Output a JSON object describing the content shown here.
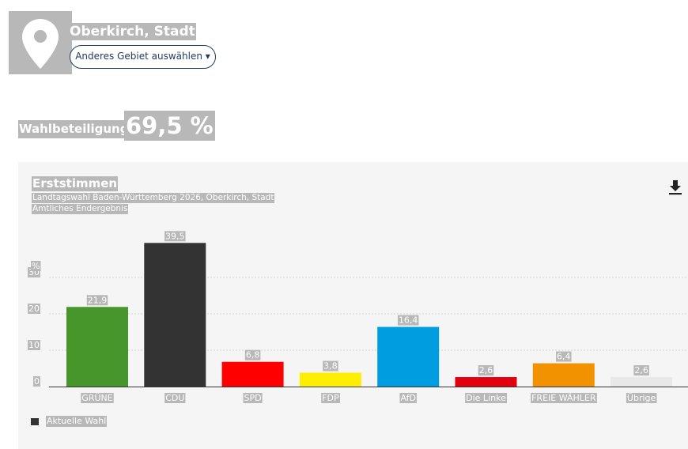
{
  "header": {
    "place_name": "Oberkirch, Stadt",
    "region_button_label": "Anderes Gebiet auswählen ▾",
    "pin_icon": "map-pin-icon"
  },
  "turnout": {
    "label": "Wahlbeteiligung:",
    "value": "69,5 %"
  },
  "chart_panel": {
    "title": "Erststimmen",
    "subtitle_1": "Landtagswahl Baden-Württemberg 2026, Oberkirch, Stadt",
    "subtitle_2": "Amtliches Endergebnis",
    "download_icon": "download-icon",
    "legend": {
      "label": "Aktuelle Wahl",
      "color": "#333333"
    }
  },
  "chart_data": {
    "type": "bar",
    "title": "Erststimmen",
    "ylabel": "%",
    "ylim": [
      0,
      40
    ],
    "yticks": [
      0,
      10,
      20,
      30
    ],
    "grid": true,
    "categories": [
      "GRÜNE",
      "CDU",
      "SPD",
      "FDP",
      "AfD",
      "Die Linke",
      "FREIE WÄHLER",
      "Übrige"
    ],
    "values": [
      21.9,
      39.5,
      6.8,
      3.8,
      16.4,
      2.6,
      6.4,
      2.6
    ],
    "value_labels": [
      "21,9",
      "39,5",
      "6,8",
      "3,8",
      "16,4",
      "2,6",
      "6,4",
      "2,6"
    ],
    "colors": [
      "#46962b",
      "#333333",
      "#ff0000",
      "#ffee00",
      "#009ee0",
      "#e3000f",
      "#f39200",
      "#e8e8e8"
    ],
    "series": [
      {
        "name": "Aktuelle Wahl"
      }
    ]
  }
}
